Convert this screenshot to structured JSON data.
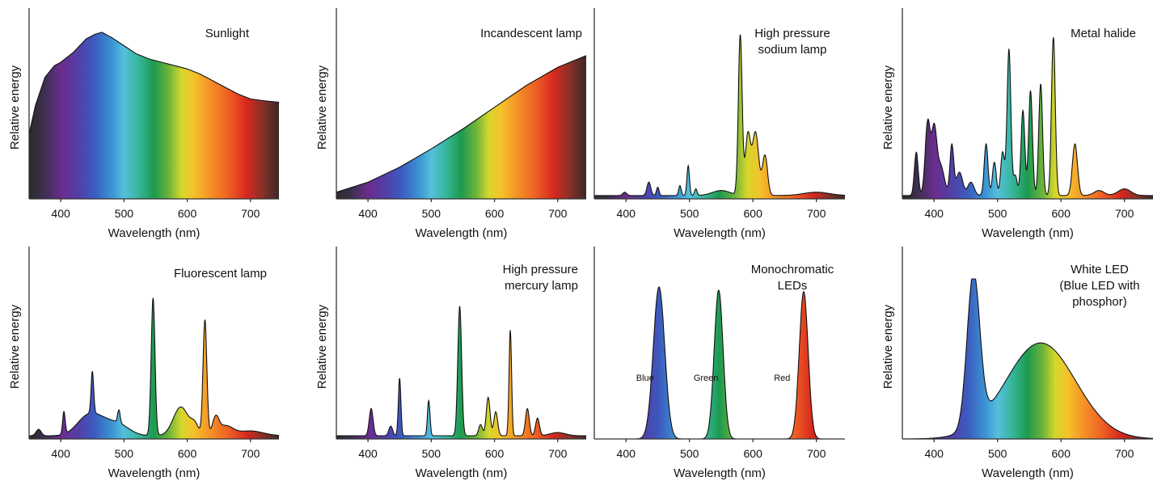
{
  "chart_data": [
    {
      "type": "area",
      "title": "Sunlight",
      "xlabel": "Wavelength (nm)",
      "ylabel": "Relative energy",
      "xlim": [
        350,
        745
      ],
      "xticks": [
        400,
        500,
        600,
        700
      ],
      "ylim": [
        0,
        1
      ],
      "grid": false,
      "curve": {
        "x": [
          350,
          360,
          375,
          390,
          400,
          420,
          440,
          455,
          465,
          480,
          500,
          520,
          540,
          560,
          580,
          600,
          620,
          640,
          660,
          680,
          700,
          720,
          745
        ],
        "y": [
          0.39,
          0.56,
          0.73,
          0.8,
          0.82,
          0.88,
          0.96,
          0.99,
          1.0,
          0.97,
          0.92,
          0.87,
          0.84,
          0.82,
          0.8,
          0.78,
          0.75,
          0.71,
          0.67,
          0.63,
          0.6,
          0.59,
          0.58
        ]
      }
    },
    {
      "type": "area",
      "title": "Incandescent lamp",
      "xlabel": "Wavelength (nm)",
      "ylabel": "Relative energy",
      "xlim": [
        350,
        745
      ],
      "xticks": [
        400,
        500,
        600,
        700
      ],
      "ylim": [
        0,
        1
      ],
      "grid": false,
      "curve": {
        "x": [
          350,
          400,
          450,
          500,
          550,
          600,
          650,
          700,
          745
        ],
        "y": [
          0.04,
          0.1,
          0.19,
          0.3,
          0.42,
          0.55,
          0.68,
          0.79,
          0.86
        ]
      }
    },
    {
      "type": "area",
      "title": "High pressure sodium lamp",
      "xlabel": "Wavelength (nm)",
      "ylabel": "",
      "xlim": [
        350,
        745
      ],
      "xticks": [
        400,
        500,
        600,
        700
      ],
      "ylim": [
        0,
        1
      ],
      "grid": false,
      "baseline": 0.02,
      "peaks": [
        {
          "x": 398,
          "h": 0.02,
          "w": 3
        },
        {
          "x": 436,
          "h": 0.08,
          "w": 3
        },
        {
          "x": 450,
          "h": 0.05,
          "w": 2
        },
        {
          "x": 485,
          "h": 0.06,
          "w": 2
        },
        {
          "x": 498,
          "h": 0.18,
          "w": 2
        },
        {
          "x": 510,
          "h": 0.04,
          "w": 2
        },
        {
          "x": 550,
          "h": 0.03,
          "w": 14
        },
        {
          "x": 580,
          "h": 0.96,
          "w": 3
        },
        {
          "x": 592,
          "h": 0.36,
          "w": 4
        },
        {
          "x": 604,
          "h": 0.38,
          "w": 5
        },
        {
          "x": 619,
          "h": 0.24,
          "w": 4
        },
        {
          "x": 700,
          "h": 0.02,
          "w": 20
        }
      ]
    },
    {
      "type": "area",
      "title": "Metal halide",
      "xlabel": "Wavelength (nm)",
      "ylabel": "Relative energy",
      "xlim": [
        350,
        745
      ],
      "xticks": [
        400,
        500,
        600,
        700
      ],
      "ylim": [
        0,
        1
      ],
      "grid": false,
      "baseline": 0.02,
      "peaks": [
        {
          "x": 372,
          "h": 0.26,
          "w": 3
        },
        {
          "x": 390,
          "h": 0.44,
          "w": 4
        },
        {
          "x": 400,
          "h": 0.37,
          "w": 4
        },
        {
          "x": 410,
          "h": 0.18,
          "w": 6
        },
        {
          "x": 428,
          "h": 0.3,
          "w": 3
        },
        {
          "x": 440,
          "h": 0.14,
          "w": 5
        },
        {
          "x": 458,
          "h": 0.08,
          "w": 5
        },
        {
          "x": 482,
          "h": 0.31,
          "w": 3
        },
        {
          "x": 495,
          "h": 0.2,
          "w": 3
        },
        {
          "x": 508,
          "h": 0.26,
          "w": 3
        },
        {
          "x": 518,
          "h": 0.88,
          "w": 3
        },
        {
          "x": 528,
          "h": 0.12,
          "w": 3
        },
        {
          "x": 540,
          "h": 0.51,
          "w": 3
        },
        {
          "x": 552,
          "h": 0.63,
          "w": 3
        },
        {
          "x": 568,
          "h": 0.67,
          "w": 3
        },
        {
          "x": 588,
          "h": 0.95,
          "w": 3
        },
        {
          "x": 622,
          "h": 0.31,
          "w": 4
        },
        {
          "x": 660,
          "h": 0.03,
          "w": 8
        },
        {
          "x": 700,
          "h": 0.04,
          "w": 10
        }
      ]
    },
    {
      "type": "area",
      "title": "Fluorescent lamp",
      "xlabel": "Wavelength (nm)",
      "ylabel": "Relative energy",
      "xlim": [
        350,
        745
      ],
      "xticks": [
        400,
        500,
        600,
        700
      ],
      "ylim": [
        0,
        1
      ],
      "grid": false,
      "baseline": 0.02,
      "peaks": [
        {
          "x": 365,
          "h": 0.04,
          "w": 4
        },
        {
          "x": 405,
          "h": 0.14,
          "w": 2
        },
        {
          "x": 436,
          "h": 0.06,
          "w": 16
        },
        {
          "x": 455,
          "h": 0.1,
          "w": 18
        },
        {
          "x": 450,
          "h": 0.26,
          "w": 2
        },
        {
          "x": 490,
          "h": 0.07,
          "w": 18
        },
        {
          "x": 492,
          "h": 0.08,
          "w": 2
        },
        {
          "x": 546,
          "h": 0.86,
          "w": 3
        },
        {
          "x": 590,
          "h": 0.18,
          "w": 12
        },
        {
          "x": 612,
          "h": 0.06,
          "w": 6
        },
        {
          "x": 628,
          "h": 0.72,
          "w": 3
        },
        {
          "x": 645,
          "h": 0.1,
          "w": 5
        },
        {
          "x": 660,
          "h": 0.06,
          "w": 12
        },
        {
          "x": 700,
          "h": 0.03,
          "w": 20
        }
      ]
    },
    {
      "type": "area",
      "title": "High pressure mercury lamp",
      "xlabel": "Wavelength (nm)",
      "ylabel": "Relative energy",
      "xlim": [
        350,
        745
      ],
      "xticks": [
        400,
        500,
        600,
        700
      ],
      "ylim": [
        0,
        1
      ],
      "grid": false,
      "baseline": 0.02,
      "peaks": [
        {
          "x": 405,
          "h": 0.17,
          "w": 3
        },
        {
          "x": 436,
          "h": 0.06,
          "w": 3
        },
        {
          "x": 450,
          "h": 0.36,
          "w": 2
        },
        {
          "x": 496,
          "h": 0.22,
          "w": 2
        },
        {
          "x": 545,
          "h": 0.81,
          "w": 3
        },
        {
          "x": 578,
          "h": 0.07,
          "w": 3
        },
        {
          "x": 590,
          "h": 0.24,
          "w": 3
        },
        {
          "x": 602,
          "h": 0.15,
          "w": 3
        },
        {
          "x": 625,
          "h": 0.66,
          "w": 2
        },
        {
          "x": 652,
          "h": 0.17,
          "w": 3
        },
        {
          "x": 668,
          "h": 0.11,
          "w": 3
        },
        {
          "x": 700,
          "h": 0.02,
          "w": 12
        }
      ]
    },
    {
      "type": "area",
      "title": "Monochromatic LEDs",
      "xlabel": "Wavelength (nm)",
      "ylabel": "",
      "xlim": [
        350,
        745
      ],
      "xticks": [
        400,
        500,
        600,
        700
      ],
      "ylim": [
        0,
        1
      ],
      "grid": false,
      "baseline": 0.0,
      "series": [
        {
          "name": "Blue",
          "peak_x": 452,
          "width": 9,
          "height": 0.95,
          "label_x": 418
        },
        {
          "name": "Green",
          "peak_x": 546,
          "width": 7,
          "height": 0.93,
          "label_x": 514
        },
        {
          "name": "Red",
          "peak_x": 680,
          "width": 7,
          "height": 0.92,
          "label_x": 634
        }
      ]
    },
    {
      "type": "area",
      "title": "White LED\n(Blue LED with\nphosphor)",
      "xlabel": "Wavelength (nm)",
      "ylabel": "Relative energy",
      "xlim": [
        350,
        745
      ],
      "xticks": [
        400,
        500,
        600,
        700
      ],
      "ylim": [
        0,
        1
      ],
      "grid": false,
      "baseline": 0.0,
      "peaks": [
        {
          "x": 462,
          "h": 0.95,
          "w": 10
        },
        {
          "x": 568,
          "h": 0.6,
          "w": 55
        }
      ]
    }
  ]
}
